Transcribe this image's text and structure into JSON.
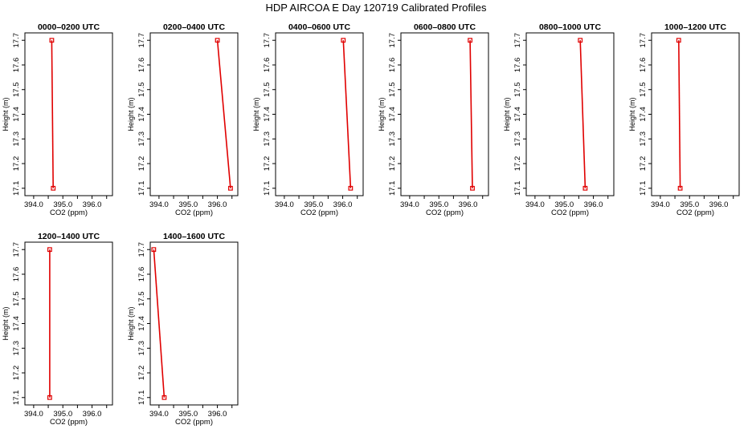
{
  "title": "HDP AIRCOA E  Day 120719  Calibrated Profiles",
  "colors": {
    "profile": "#e00000",
    "axis": "#000000"
  },
  "chart_data": [
    {
      "type": "line",
      "title": "0000–0200 UTC",
      "xlabel": "CO2 (ppm)",
      "ylabel": "Height (m)",
      "xlim": [
        393.7,
        396.7
      ],
      "ylim": [
        17.07,
        17.73
      ],
      "xticks": [
        "394.0",
        "395.0",
        "396.0"
      ],
      "yticks": [
        "17.1",
        "17.2",
        "17.3",
        "17.4",
        "17.5",
        "17.6",
        "17.7"
      ],
      "x": [
        394.62,
        394.67
      ],
      "y": [
        17.7,
        17.1
      ],
      "legend": "none",
      "grid": false
    },
    {
      "type": "line",
      "title": "0200–0400 UTC",
      "xlabel": "CO2 (ppm)",
      "ylabel": "Height (m)",
      "xlim": [
        393.7,
        396.7
      ],
      "ylim": [
        17.07,
        17.73
      ],
      "xticks": [
        "394.0",
        "395.0",
        "396.0"
      ],
      "yticks": [
        "17.1",
        "17.2",
        "17.3",
        "17.4",
        "17.5",
        "17.6",
        "17.7"
      ],
      "x": [
        396.0,
        396.45
      ],
      "y": [
        17.7,
        17.1
      ],
      "legend": "none",
      "grid": false
    },
    {
      "type": "line",
      "title": "0400–0600 UTC",
      "xlabel": "CO2 (ppm)",
      "ylabel": "Height (m)",
      "xlim": [
        393.7,
        396.7
      ],
      "ylim": [
        17.07,
        17.73
      ],
      "xticks": [
        "394.0",
        "395.0",
        "396.0"
      ],
      "yticks": [
        "17.1",
        "17.2",
        "17.3",
        "17.4",
        "17.5",
        "17.6",
        "17.7"
      ],
      "x": [
        396.02,
        396.27
      ],
      "y": [
        17.7,
        17.1
      ],
      "legend": "none",
      "grid": false
    },
    {
      "type": "line",
      "title": "0600–0800 UTC",
      "xlabel": "CO2 (ppm)",
      "ylabel": "Height (m)",
      "xlim": [
        393.7,
        396.7
      ],
      "ylim": [
        17.07,
        17.73
      ],
      "xticks": [
        "394.0",
        "395.0",
        "396.0"
      ],
      "yticks": [
        "17.1",
        "17.2",
        "17.3",
        "17.4",
        "17.5",
        "17.6",
        "17.7"
      ],
      "x": [
        396.07,
        396.15
      ],
      "y": [
        17.7,
        17.1
      ],
      "legend": "none",
      "grid": false
    },
    {
      "type": "line",
      "title": "0800–1000 UTC",
      "xlabel": "CO2 (ppm)",
      "ylabel": "Height (m)",
      "xlim": [
        393.7,
        396.7
      ],
      "ylim": [
        17.07,
        17.73
      ],
      "xticks": [
        "394.0",
        "395.0",
        "396.0"
      ],
      "yticks": [
        "17.1",
        "17.2",
        "17.3",
        "17.4",
        "17.5",
        "17.6",
        "17.7"
      ],
      "x": [
        395.55,
        395.72
      ],
      "y": [
        17.7,
        17.1
      ],
      "legend": "none",
      "grid": false
    },
    {
      "type": "line",
      "title": "1000–1200 UTC",
      "xlabel": "CO2 (ppm)",
      "ylabel": "Height (m)",
      "xlim": [
        393.7,
        396.7
      ],
      "ylim": [
        17.07,
        17.73
      ],
      "xticks": [
        "394.0",
        "395.0",
        "396.0"
      ],
      "yticks": [
        "17.1",
        "17.2",
        "17.3",
        "17.4",
        "17.5",
        "17.6",
        "17.7"
      ],
      "x": [
        394.63,
        394.68
      ],
      "y": [
        17.7,
        17.1
      ],
      "legend": "none",
      "grid": false
    },
    {
      "type": "line",
      "title": "1200–1400 UTC",
      "xlabel": "CO2 (ppm)",
      "ylabel": "Height (m)",
      "xlim": [
        393.7,
        396.7
      ],
      "ylim": [
        17.07,
        17.73
      ],
      "xticks": [
        "394.0",
        "395.0",
        "396.0"
      ],
      "yticks": [
        "17.1",
        "17.2",
        "17.3",
        "17.4",
        "17.5",
        "17.6",
        "17.7"
      ],
      "x": [
        394.55,
        394.55
      ],
      "y": [
        17.7,
        17.1
      ],
      "legend": "none",
      "grid": false
    },
    {
      "type": "line",
      "title": "1400–1600 UTC",
      "xlabel": "CO2 (ppm)",
      "ylabel": "Height (m)",
      "xlim": [
        393.7,
        396.7
      ],
      "ylim": [
        17.07,
        17.73
      ],
      "xticks": [
        "394.0",
        "395.0",
        "396.0"
      ],
      "yticks": [
        "17.1",
        "17.2",
        "17.3",
        "17.4",
        "17.5",
        "17.6",
        "17.7"
      ],
      "x": [
        393.82,
        394.18
      ],
      "y": [
        17.7,
        17.1
      ],
      "legend": "none",
      "grid": false
    }
  ]
}
